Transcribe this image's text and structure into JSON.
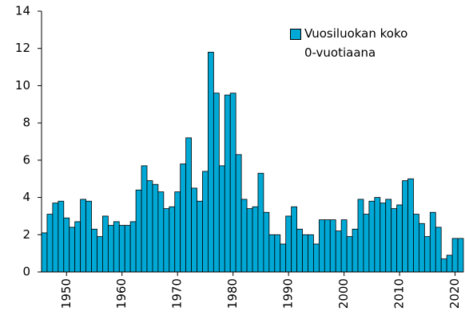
{
  "chart_data": {
    "type": "bar",
    "x": [
      1946,
      1947,
      1948,
      1949,
      1950,
      1951,
      1952,
      1953,
      1954,
      1955,
      1956,
      1957,
      1958,
      1959,
      1960,
      1961,
      1962,
      1963,
      1964,
      1965,
      1966,
      1967,
      1968,
      1969,
      1970,
      1971,
      1972,
      1973,
      1974,
      1975,
      1976,
      1977,
      1978,
      1979,
      1980,
      1981,
      1982,
      1983,
      1984,
      1985,
      1986,
      1987,
      1988,
      1989,
      1990,
      1991,
      1992,
      1993,
      1994,
      1995,
      1996,
      1997,
      1998,
      1999,
      2000,
      2001,
      2002,
      2003,
      2004,
      2005,
      2006,
      2007,
      2008,
      2009,
      2010,
      2011,
      2012,
      2013,
      2014,
      2015,
      2016,
      2017,
      2018,
      2019,
      2020,
      2021
    ],
    "series": [
      {
        "name": "Vuosiluokan koko 0-vuotiaana",
        "color": "#00a8d6",
        "values": [
          2.1,
          3.1,
          3.7,
          3.8,
          2.9,
          2.4,
          2.7,
          3.9,
          3.8,
          2.3,
          1.9,
          3.0,
          2.5,
          2.7,
          2.5,
          2.5,
          2.7,
          4.4,
          5.7,
          4.9,
          4.7,
          4.3,
          3.4,
          3.5,
          4.3,
          5.8,
          7.2,
          4.5,
          3.8,
          5.4,
          11.8,
          9.6,
          5.7,
          9.5,
          9.6,
          6.3,
          3.9,
          3.4,
          3.5,
          5.3,
          3.2,
          2.0,
          2.0,
          1.5,
          3.0,
          3.5,
          2.3,
          2.0,
          2.0,
          1.5,
          2.8,
          2.8,
          2.8,
          2.2,
          2.8,
          1.9,
          2.3,
          3.9,
          3.1,
          3.8,
          4.0,
          3.7,
          3.9,
          3.4,
          3.6,
          4.9,
          5.0,
          3.1,
          2.6,
          1.9,
          3.2,
          2.4,
          0.7,
          0.9,
          1.8,
          1.8
        ]
      }
    ],
    "xlim": [
      1945.5,
      2021.5
    ],
    "xticks": [
      1950,
      1960,
      1970,
      1980,
      1990,
      2000,
      2010,
      2020
    ],
    "ylim": [
      0,
      14
    ],
    "yticks": [
      0,
      2,
      4,
      6,
      8,
      10,
      12,
      14
    ],
    "grid": false
  }
}
